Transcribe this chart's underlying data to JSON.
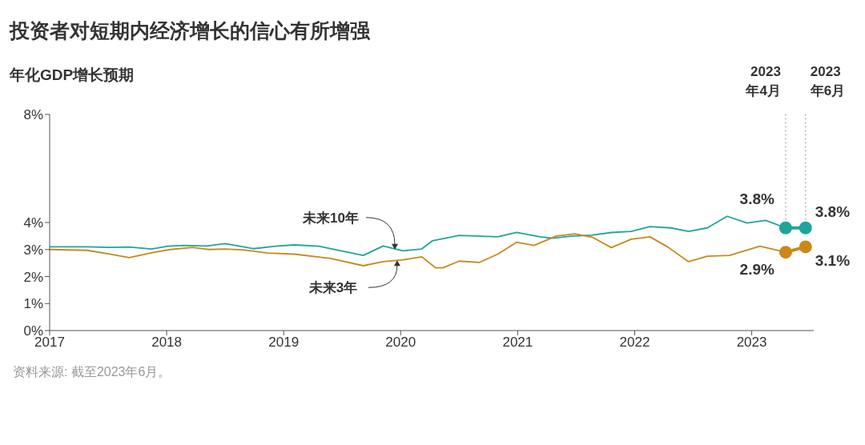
{
  "chart_data": {
    "type": "line",
    "title": "投资者对短期内经济增长的信心有所增强",
    "ylabel": "年化GDP增长预期",
    "xlim": [
      2017,
      2023.53
    ],
    "xticks": [
      2017,
      2018,
      2019,
      2020,
      2021,
      2022,
      2023
    ],
    "ylim": [
      0,
      8
    ],
    "yticks": [
      {
        "value": 0,
        "label": "0%"
      },
      {
        "value": 1,
        "label": "1%"
      },
      {
        "value": 2,
        "label": "2%"
      },
      {
        "value": 3,
        "label": "3%"
      },
      {
        "value": 4,
        "label": "4%"
      },
      {
        "value": 8,
        "label": "8%"
      }
    ],
    "grid": false,
    "legend": false,
    "line_style": "solid",
    "series": [
      {
        "color": "#1fa59a",
        "marker": "none",
        "x": [
          2017.0,
          2017.32,
          2017.51,
          2017.68,
          2017.87,
          2018.01,
          2018.15,
          2018.34,
          2018.5,
          2018.74,
          2018.93,
          2019.09,
          2019.3,
          2019.68,
          2019.85,
          2020.02,
          2020.18,
          2020.27,
          2020.5,
          2020.83,
          2020.99,
          2021.19,
          2021.3,
          2021.47,
          2021.63,
          2021.8,
          2021.97,
          2022.13,
          2022.31,
          2022.46,
          2022.62,
          2022.79,
          2022.96,
          2023.12,
          2023.29
        ],
        "values": [
          3.1,
          3.1,
          3.08,
          3.09,
          3.02,
          3.12,
          3.15,
          3.13,
          3.22,
          3.03,
          3.12,
          3.17,
          3.12,
          2.78,
          3.13,
          2.95,
          3.02,
          3.32,
          3.52,
          3.47,
          3.63,
          3.47,
          3.42,
          3.5,
          3.53,
          3.63,
          3.67,
          3.85,
          3.8,
          3.67,
          3.8,
          4.23,
          3.98,
          4.08,
          3.8
        ]
      },
      {
        "color": "#c9891a",
        "marker": "none",
        "x": [
          2017.0,
          2017.32,
          2017.51,
          2017.68,
          2017.87,
          2018.03,
          2018.22,
          2018.36,
          2018.5,
          2018.67,
          2018.86,
          2019.09,
          2019.4,
          2019.68,
          2019.85,
          2020.02,
          2020.18,
          2020.3,
          2020.36,
          2020.5,
          2020.67,
          2020.83,
          2020.99,
          2021.14,
          2021.33,
          2021.49,
          2021.64,
          2021.8,
          2021.97,
          2022.13,
          2022.28,
          2022.46,
          2022.62,
          2022.81,
          2023.07,
          2023.29
        ],
        "values": [
          3.0,
          2.97,
          2.83,
          2.7,
          2.88,
          3.0,
          3.08,
          3.0,
          3.02,
          2.98,
          2.87,
          2.83,
          2.67,
          2.4,
          2.55,
          2.62,
          2.73,
          2.32,
          2.32,
          2.57,
          2.52,
          2.83,
          3.27,
          3.15,
          3.5,
          3.58,
          3.45,
          3.07,
          3.38,
          3.47,
          3.1,
          2.55,
          2.75,
          2.78,
          3.12,
          2.9
        ]
      },
      {
        "color": "#1fa59a",
        "marker": "circle",
        "x": [
          2023.29,
          2023.46
        ],
        "values": [
          3.8,
          3.8
        ],
        "value_labels": [
          "3.8%",
          "3.8%"
        ]
      },
      {
        "color": "#c9891a",
        "marker": "circle",
        "x": [
          2023.29,
          2023.46
        ],
        "values": [
          2.9,
          3.1
        ],
        "value_labels": [
          "2.9%",
          "3.1%"
        ]
      }
    ],
    "ref_lines": [
      {
        "axis": "x",
        "value": 2023.29,
        "label": "2023\n年4月",
        "color": "#888888",
        "line_style": "dotted"
      },
      {
        "axis": "x",
        "value": 2023.46,
        "label": "2023\n年6月",
        "color": "#888888",
        "line_style": "dotted"
      }
    ],
    "annotations": [
      {
        "text": "未来10年",
        "x": 2019.95,
        "y": 3.0
      },
      {
        "text": "未来3年",
        "x": 2019.97,
        "y": 2.6
      },
      "资料来源: 截至2023年6月。"
    ]
  }
}
